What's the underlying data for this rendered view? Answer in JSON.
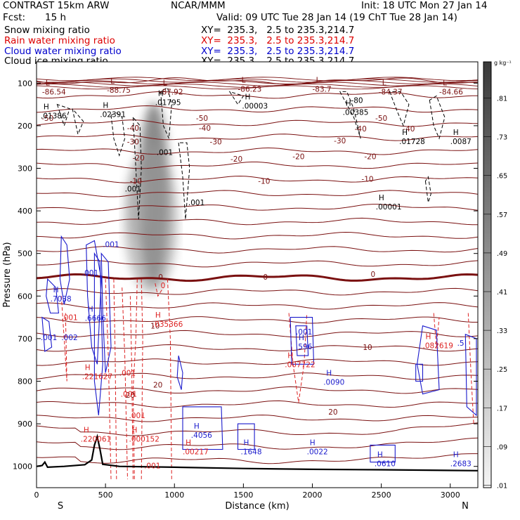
{
  "header": {
    "model": "CONTRAST 15km ARW",
    "org": "NCAR/MMM",
    "init": "Init: 18 UTC Mon 27 Jan 14",
    "fcst_label": "Fcst:",
    "fcst_value": "15 h",
    "valid": "Valid: 09 UTC Tue 28 Jan 14 (19 ChT Tue 28 Jan 14)"
  },
  "fields": [
    {
      "name": "Snow mixing ratio",
      "xy": "XY=  235.3,   2.5 to 235.3,214.7",
      "color": "#000000"
    },
    {
      "name": "Rain water mixing ratio",
      "xy": "XY=  235.3,   2.5 to 235.3,214.7",
      "color": "#dd0000"
    },
    {
      "name": "Cloud water mixing ratio",
      "xy": "XY=  235.3,   2.5 to 235.3,214.7",
      "color": "#0000cc"
    },
    {
      "name": "Cloud ice mixing ratio",
      "xy": "XY=  235.3,   2.5 to 235.3,214.7",
      "color": "#000000"
    }
  ],
  "colorbar": {
    "units": "g kg⁻¹",
    "labels": [
      ".81",
      ".73",
      ".65",
      ".57",
      ".49",
      ".41",
      ".33",
      ".25",
      ".17",
      ".09",
      ".01"
    ]
  },
  "chart_data": {
    "type": "cross-section contour",
    "xlabel": "Distance (km)",
    "ylabel": "Pressure (hPa)",
    "xlim": [
      0,
      3200
    ],
    "ylim": [
      1050,
      50
    ],
    "x_ticks": [
      "0",
      "500",
      "1000",
      "1500",
      "2000",
      "2500",
      "3000"
    ],
    "y_ticks": [
      "100",
      "200",
      "300",
      "400",
      "500",
      "600",
      "700",
      "800",
      "900",
      "1000"
    ],
    "x_end_labels": [
      "S",
      "N"
    ],
    "temperature_contours": [
      {
        "value": -50,
        "labels": [
          "-50",
          "-50",
          "-50"
        ]
      },
      {
        "value": -40,
        "labels": [
          "-40",
          "-40",
          "-40",
          "-40"
        ]
      },
      {
        "value": -30,
        "labels": [
          "-30",
          "-30",
          "-30"
        ]
      },
      {
        "value": -20,
        "labels": [
          "-20",
          "-20",
          "-20",
          "-20"
        ]
      },
      {
        "value": -10,
        "labels": [
          "-10",
          "-10",
          "-10"
        ]
      },
      {
        "value": 0,
        "labels": [
          "0",
          "0",
          "0"
        ]
      },
      {
        "value": 10,
        "labels": [
          "10",
          "10"
        ]
      },
      {
        "value": 20,
        "labels": [
          "20",
          "20",
          "20"
        ]
      }
    ],
    "extrema": [
      {
        "kind": "L",
        "value": "-86.54",
        "x": 40,
        "p": 112,
        "color": "dark"
      },
      {
        "kind": "L",
        "value": "-88.75",
        "x": 510,
        "p": 108,
        "color": "dark"
      },
      {
        "kind": "L",
        "value": "-87.92",
        "x": 890,
        "p": 112,
        "color": "dark"
      },
      {
        "kind": "L",
        "value": "-86.23",
        "x": 1460,
        "p": 105,
        "color": "dark"
      },
      {
        "kind": "L",
        "value": "-83.7",
        "x": 2000,
        "p": 105,
        "color": "dark"
      },
      {
        "kind": "L",
        "value": "-84.37",
        "x": 2480,
        "p": 112,
        "color": "dark"
      },
      {
        "kind": "L",
        "value": "-84.66",
        "x": 2920,
        "p": 112,
        "color": "dark"
      },
      {
        "kind": "H",
        "value": ".01386",
        "x": 30,
        "p": 168,
        "color": "black"
      },
      {
        "kind": "H",
        "value": ".02391",
        "x": 460,
        "p": 165,
        "color": "black"
      },
      {
        "kind": "H",
        "value": ".01795",
        "x": 860,
        "p": 137,
        "color": "black"
      },
      {
        "kind": "H",
        "value": ".00003",
        "x": 1490,
        "p": 145,
        "color": "black"
      },
      {
        "kind": "H",
        "value": ".00385",
        "x": 2220,
        "p": 160,
        "color": "black"
      },
      {
        "kind": "H",
        "value": ".01728",
        "x": 2630,
        "p": 228,
        "color": "black"
      },
      {
        "kind": "H",
        "value": ".0087",
        "x": 3000,
        "p": 228,
        "color": "black"
      },
      {
        "kind": "H",
        "value": ".00001",
        "x": 2460,
        "p": 382,
        "color": "black"
      },
      {
        "kind": "H",
        "value": ".7038",
        "x": 100,
        "p": 598,
        "color": "blue"
      },
      {
        "kind": "H",
        "value": ".6666",
        "x": 350,
        "p": 643,
        "color": "blue"
      },
      {
        "kind": "H",
        "value": ".035366",
        "x": 840,
        "p": 657,
        "color": "red"
      },
      {
        "kind": "H",
        "value": ".596",
        "x": 1880,
        "p": 710,
        "color": "blue"
      },
      {
        "kind": "H",
        "value": ".007722",
        "x": 1800,
        "p": 752,
        "color": "red"
      },
      {
        "kind": "H",
        "value": ".0090",
        "x": 2080,
        "p": 793,
        "color": "blue"
      },
      {
        "kind": "H",
        "value": ".082619",
        "x": 2800,
        "p": 708,
        "color": "red"
      },
      {
        "kind": "H",
        "value": ".221627",
        "x": 330,
        "p": 780,
        "color": "red"
      },
      {
        "kind": "H",
        "value": ".220061",
        "x": 320,
        "p": 927,
        "color": "red"
      },
      {
        "kind": "H",
        "value": ".000152",
        "x": 670,
        "p": 927,
        "color": "red"
      },
      {
        "kind": "H",
        "value": ".00217",
        "x": 1060,
        "p": 957,
        "color": "red"
      },
      {
        "kind": "H",
        "value": ".4056",
        "x": 1120,
        "p": 918,
        "color": "blue"
      },
      {
        "kind": "H",
        "value": ".1648",
        "x": 1480,
        "p": 957,
        "color": "blue"
      },
      {
        "kind": "H",
        "value": ".0022",
        "x": 1960,
        "p": 957,
        "color": "blue"
      },
      {
        "kind": "H",
        "value": ".0610",
        "x": 2450,
        "p": 985,
        "color": "blue"
      },
      {
        "kind": "H",
        "value": ".2683",
        "x": 3000,
        "p": 985,
        "color": "blue"
      }
    ],
    "contour_labels": [
      {
        "text": ".001",
        "x": 480,
        "p": 478,
        "color": "blue"
      },
      {
        "text": ".001",
        "x": 330,
        "p": 545,
        "color": "blue"
      },
      {
        "text": ".001",
        "x": 670,
        "p": 880,
        "color": "red"
      },
      {
        "text": ".001",
        "x": 610,
        "p": 830,
        "color": "red"
      },
      {
        "text": ".001",
        "x": 600,
        "p": 780,
        "color": "red"
      },
      {
        "text": ".001",
        "x": 780,
        "p": 998,
        "color": "red"
      },
      {
        "text": ".001",
        "x": 870,
        "p": 262,
        "color": "black"
      },
      {
        "text": ".001",
        "x": 640,
        "p": 348,
        "color": "black"
      },
      {
        "text": ".001",
        "x": 1100,
        "p": 380,
        "color": "black"
      },
      {
        "text": ".001",
        "x": 1880,
        "p": 684,
        "color": "blue"
      },
      {
        "text": ".001",
        "x": 180,
        "p": 650,
        "color": "red"
      },
      {
        "text": ".001",
        "x": 30,
        "p": 697,
        "color": "blue"
      },
      {
        "text": ".002",
        "x": 180,
        "p": 697,
        "color": "blue"
      },
      {
        "text": "-80",
        "x": 2280,
        "p": 140,
        "color": "black"
      },
      {
        "text": "0",
        "x": 900,
        "p": 575,
        "color": "red"
      },
      {
        "text": ".5",
        "x": 3050,
        "p": 710,
        "color": "blue"
      }
    ]
  }
}
